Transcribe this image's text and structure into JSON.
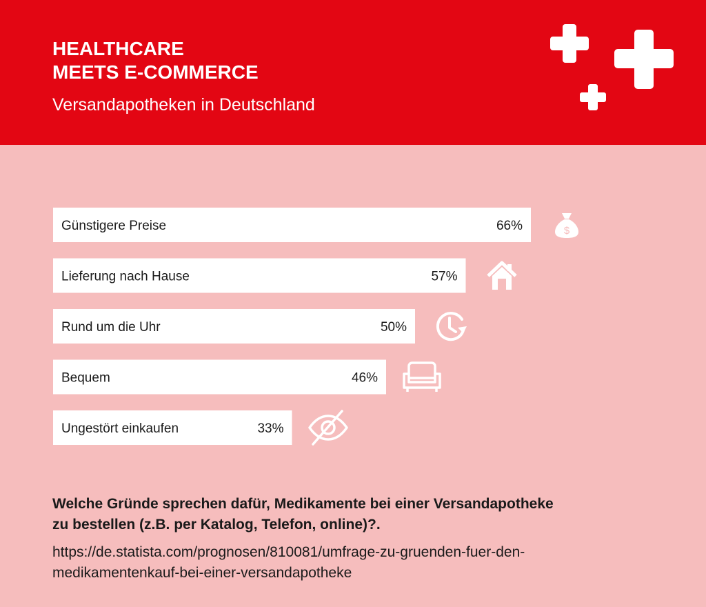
{
  "header": {
    "title_lines": [
      "HEALTHCARE",
      "MEETS E-COMMERCE"
    ],
    "subtitle": "Versandapotheken in Deutschland"
  },
  "colors": {
    "brand_red": "#e30613",
    "background": "#f6bdbd",
    "bar_fill": "#ffffff",
    "text": "#1a1a1a"
  },
  "chart_data": {
    "type": "bar",
    "orientation": "horizontal",
    "categories": [
      "Günstigere Preise",
      "Lieferung nach Hause",
      "Rund um die Uhr",
      "Bequem",
      "Ungestört einkaufen"
    ],
    "values": [
      66,
      57,
      50,
      46,
      33
    ],
    "value_labels": [
      "66%",
      "57%",
      "50%",
      "46%",
      "33%"
    ],
    "unit": "%",
    "title": "",
    "xlabel": "",
    "ylabel": "",
    "grid": false,
    "icons": [
      "money-bag-icon",
      "house-icon",
      "clock-icon",
      "sofa-icon",
      "eye-crossed-icon"
    ]
  },
  "footer": {
    "question_lines": [
      "Welche Gründe sprechen dafür, Medikamente bei einer Versandapotheke",
      "zu bestellen (z.B. per Katalog, Telefon, online)?."
    ],
    "source_lines": [
      "https://de.statista.com/prognosen/810081/umfrage-zu-gruenden-fuer-den-",
      "medikamentenkauf-bei-einer-versandapotheke"
    ]
  }
}
